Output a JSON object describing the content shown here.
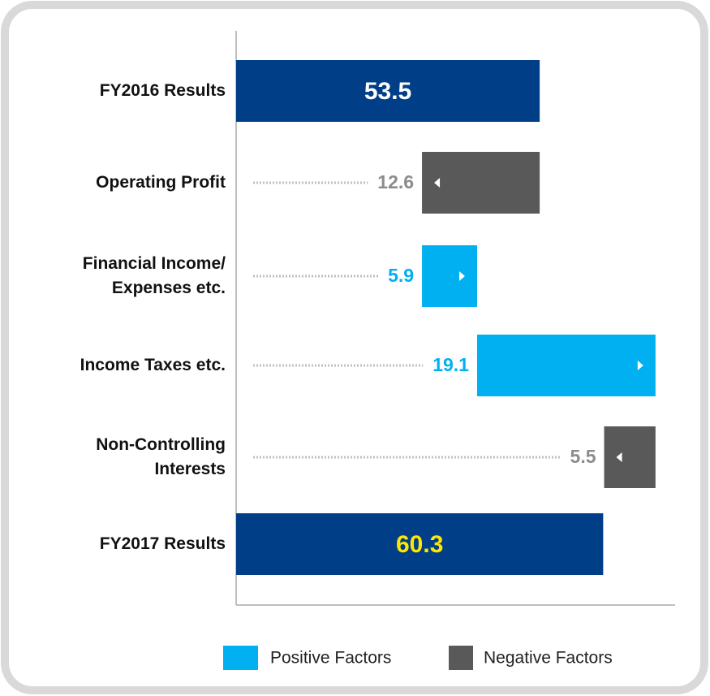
{
  "chart_data": {
    "type": "waterfall",
    "categories": [
      "FY2016 Results",
      "Operating Profit",
      "Financial Income/\nExpenses etc.",
      "Income Taxes etc.",
      "Non-Controlling\nInterests",
      "FY2017 Results"
    ],
    "totals": {
      "color": "#003f87",
      "values": [
        53.5,
        null,
        null,
        null,
        null,
        60.3
      ],
      "label_colors": [
        "#ffffff",
        null,
        null,
        null,
        null,
        "#ffe600"
      ]
    },
    "series": [
      {
        "name": "Positive Factors",
        "color": "#00b0f0",
        "values": [
          null,
          null,
          5.9,
          19.1,
          null,
          null
        ]
      },
      {
        "name": "Negative Factors",
        "color": "#595959",
        "values": [
          null,
          12.6,
          null,
          null,
          5.5,
          null
        ]
      }
    ],
    "xlim": [
      21,
      68
    ]
  }
}
